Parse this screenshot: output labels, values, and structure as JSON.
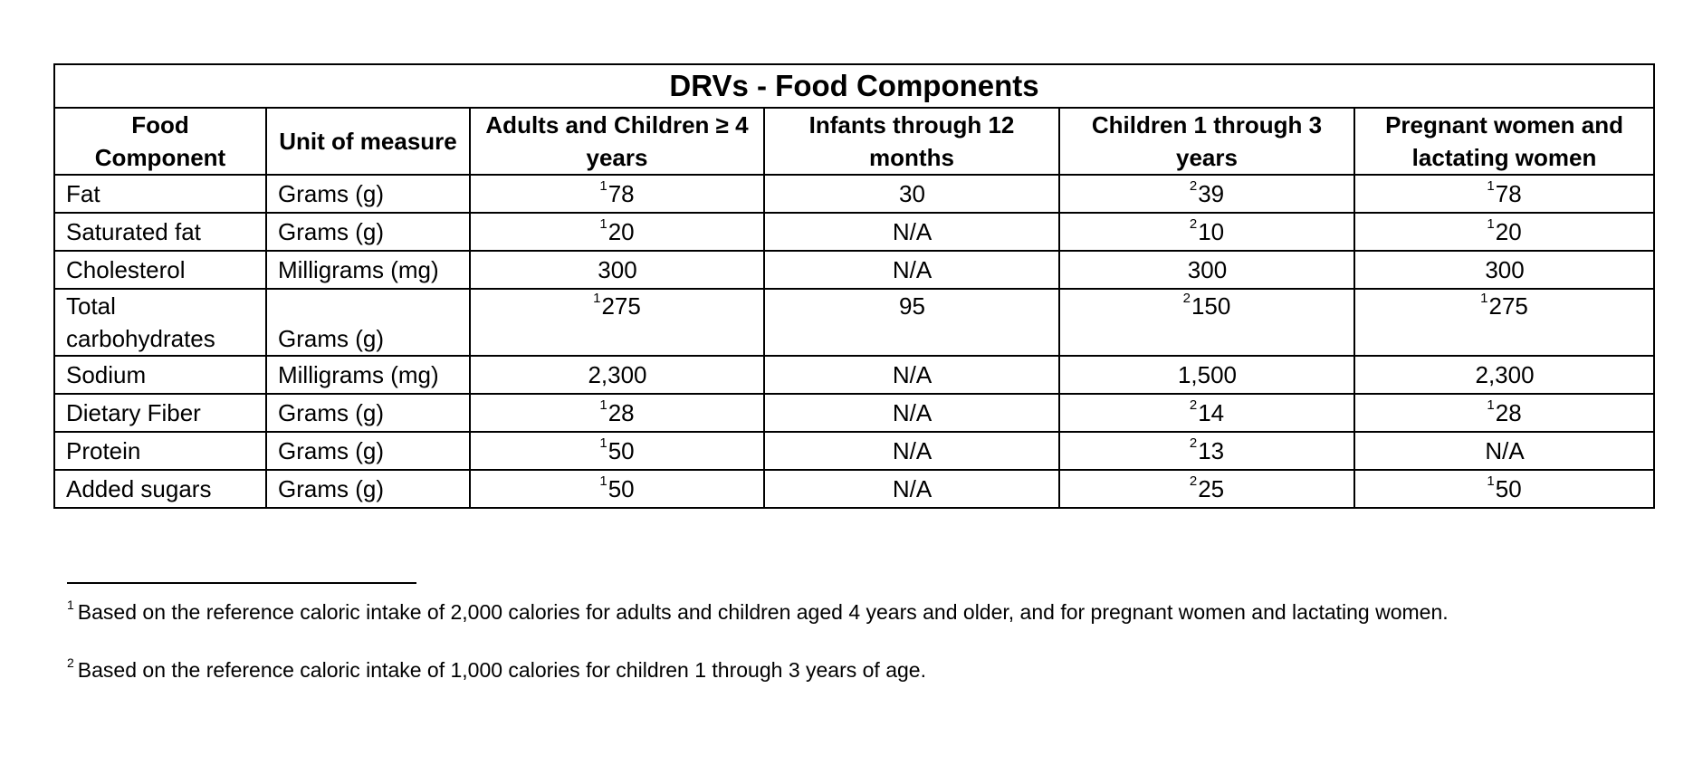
{
  "table": {
    "title": "DRVs - Food Components",
    "headers": [
      "Food Component",
      "Unit of measure",
      "Adults and Children ≥ 4 years",
      "Infants through 12 months",
      "Children 1 through 3 years",
      "Pregnant women and lactating women"
    ],
    "rows": [
      {
        "component": "Fat",
        "unit": "Grams (g)",
        "adults": {
          "sup": "1",
          "value": "78"
        },
        "infants": {
          "sup": "",
          "value": "30"
        },
        "children": {
          "sup": "2",
          "value": "39"
        },
        "pregnant": {
          "sup": "1",
          "value": "78"
        }
      },
      {
        "component": "Saturated fat",
        "unit": "Grams (g)",
        "adults": {
          "sup": "1",
          "value": "20"
        },
        "infants": {
          "sup": "",
          "value": "N/A"
        },
        "children": {
          "sup": "2",
          "value": "10"
        },
        "pregnant": {
          "sup": "1",
          "value": "20"
        }
      },
      {
        "component": "Cholesterol",
        "unit": "Milligrams (mg)",
        "adults": {
          "sup": "",
          "value": "300"
        },
        "infants": {
          "sup": "",
          "value": "N/A"
        },
        "children": {
          "sup": "",
          "value": "300"
        },
        "pregnant": {
          "sup": "",
          "value": "300"
        }
      },
      {
        "component": "Total carbohydrates",
        "unit": "Grams (g)",
        "adults": {
          "sup": "1",
          "value": "275"
        },
        "infants": {
          "sup": "",
          "value": "95"
        },
        "children": {
          "sup": "2",
          "value": "150"
        },
        "pregnant": {
          "sup": "1",
          "value": "275"
        }
      },
      {
        "component": "Sodium",
        "unit": "Milligrams (mg)",
        "adults": {
          "sup": "",
          "value": "2,300"
        },
        "infants": {
          "sup": "",
          "value": "N/A"
        },
        "children": {
          "sup": "",
          "value": "1,500"
        },
        "pregnant": {
          "sup": "",
          "value": "2,300"
        }
      },
      {
        "component": "Dietary Fiber",
        "unit": "Grams (g)",
        "adults": {
          "sup": "1",
          "value": "28"
        },
        "infants": {
          "sup": "",
          "value": "N/A"
        },
        "children": {
          "sup": "2",
          "value": "14"
        },
        "pregnant": {
          "sup": "1",
          "value": "28"
        }
      },
      {
        "component": "Protein",
        "unit": "Grams (g)",
        "adults": {
          "sup": "1",
          "value": "50"
        },
        "infants": {
          "sup": "",
          "value": "N/A"
        },
        "children": {
          "sup": "2",
          "value": "13"
        },
        "pregnant": {
          "sup": "",
          "value": "N/A"
        }
      },
      {
        "component": "Added sugars",
        "unit": "Grams (g)",
        "adults": {
          "sup": "1",
          "value": "50"
        },
        "infants": {
          "sup": "",
          "value": "N/A"
        },
        "children": {
          "sup": "2",
          "value": "25"
        },
        "pregnant": {
          "sup": "1",
          "value": "50"
        }
      }
    ]
  },
  "footnotes": [
    {
      "marker": "1",
      "text": "Based on the reference caloric intake of 2,000 calories for adults and children aged 4 years and older, and for pregnant women and lactating women."
    },
    {
      "marker": "2",
      "text": "Based on the reference caloric intake of 1,000 calories for children 1 through 3 years of age."
    }
  ]
}
